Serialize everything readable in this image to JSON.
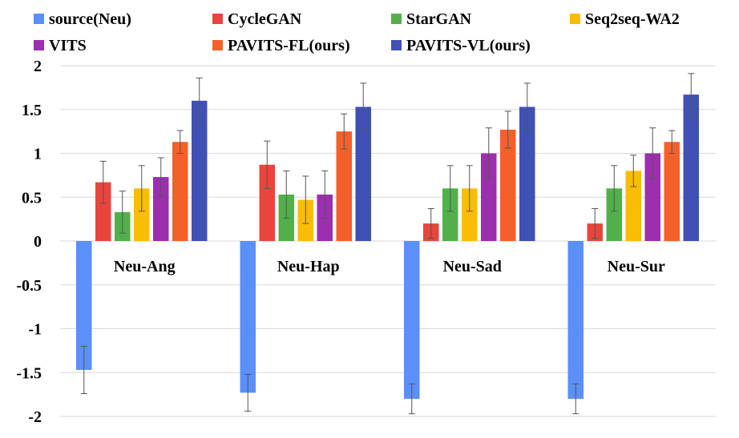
{
  "chart_data": {
    "type": "bar",
    "title": "",
    "xlabel": "",
    "ylabel": "",
    "ylim": [
      -2,
      2
    ],
    "yticks": [
      2,
      1.5,
      1,
      0.5,
      0,
      -0.5,
      -1,
      -1.5,
      -2
    ],
    "ytick_labels": [
      "2",
      "1.5",
      "1",
      "0.5",
      "0",
      "-0.5",
      "-1",
      "-1.5",
      "-2"
    ],
    "grid": true,
    "legend_position": "top",
    "categories": [
      "Neu-Ang",
      "Neu-Hap",
      "Neu-Sad",
      "Neu-Sur"
    ],
    "series": [
      {
        "name": "source(Neu)",
        "color": "#5b8ff9",
        "values": [
          -1.47,
          -1.73,
          -1.8,
          -1.8
        ],
        "errors": [
          0.27,
          0.21,
          0.17,
          0.17
        ]
      },
      {
        "name": "CycleGAN",
        "color": "#e8453c",
        "values": [
          0.67,
          0.87,
          0.2,
          0.2
        ],
        "errors": [
          0.24,
          0.27,
          0.17,
          0.17
        ]
      },
      {
        "name": "StarGAN",
        "color": "#52b04b",
        "values": [
          0.33,
          0.53,
          0.6,
          0.6
        ],
        "errors": [
          0.24,
          0.27,
          0.26,
          0.26
        ]
      },
      {
        "name": "Seq2seq-WA2",
        "color": "#fbbc05",
        "values": [
          0.6,
          0.47,
          0.6,
          0.8
        ],
        "errors": [
          0.26,
          0.27,
          0.26,
          0.18
        ]
      },
      {
        "name": "VITS",
        "color": "#9b2fae",
        "values": [
          0.73,
          0.53,
          1.0,
          1.0
        ],
        "errors": [
          0.22,
          0.27,
          0.29,
          0.29
        ]
      },
      {
        "name": "PAVITS-FL(ours)",
        "color": "#f4602a",
        "values": [
          1.13,
          1.25,
          1.27,
          1.13
        ],
        "errors": [
          0.13,
          0.2,
          0.21,
          0.13
        ]
      },
      {
        "name": "PAVITS-VL(ours)",
        "color": "#3f51b5",
        "values": [
          1.6,
          1.53,
          1.53,
          1.67
        ],
        "errors": [
          0.26,
          0.27,
          0.27,
          0.24
        ]
      }
    ]
  }
}
